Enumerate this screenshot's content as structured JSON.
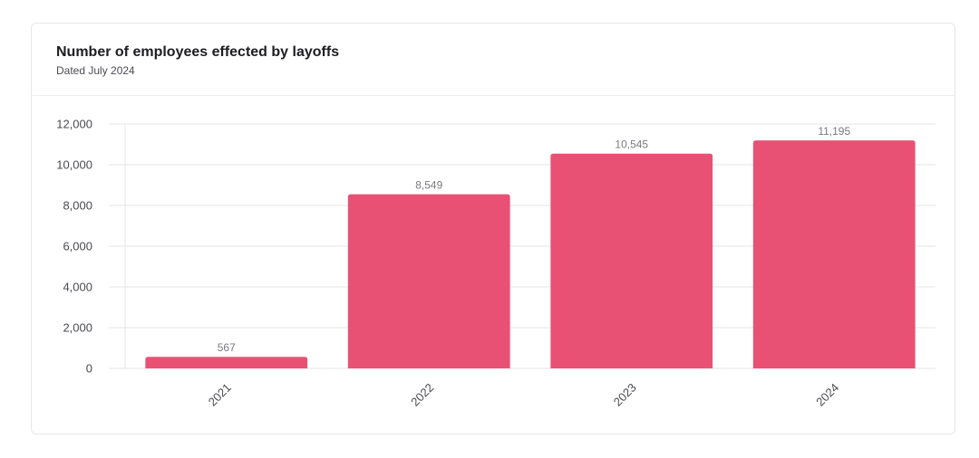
{
  "card": {
    "title": "Number of employees effected by layoffs",
    "subtitle": "Dated July 2024"
  },
  "chart_data": {
    "type": "bar",
    "categories": [
      "2021",
      "2022",
      "2023",
      "2024"
    ],
    "values": [
      567,
      8549,
      10545,
      11195
    ],
    "value_labels": [
      "567",
      "8,549",
      "10,545",
      "11,195"
    ],
    "y_ticks": [
      0,
      2000,
      4000,
      6000,
      8000,
      10000,
      12000
    ],
    "y_tick_labels": [
      "0",
      "2,000",
      "4,000",
      "6,000",
      "8,000",
      "10,000",
      "12,000"
    ],
    "ylim": [
      0,
      12000
    ],
    "bar_color": "#e95174",
    "grid": true,
    "x_tick_rotation": -45
  }
}
